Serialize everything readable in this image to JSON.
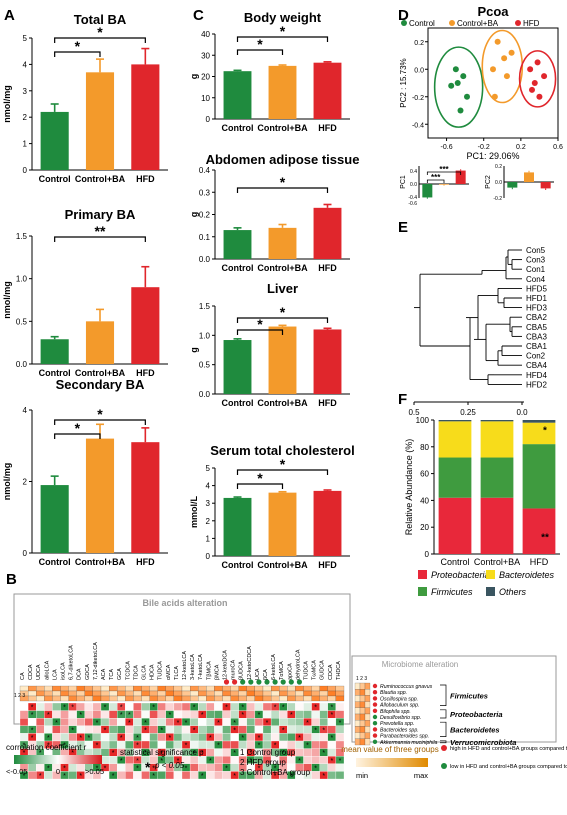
{
  "colors": {
    "control": "#1f8b3e",
    "control_ba": "#f39a2b",
    "hfd": "#e0262c",
    "prot": "#e8283a",
    "bact": "#f7dc1b",
    "firm": "#3f9b3f",
    "others": "#3a5560"
  },
  "letters": [
    "A",
    "B",
    "C",
    "D",
    "E",
    "F"
  ],
  "legend_d": {
    "control": "Control",
    "control_ba": "Control+BA",
    "hfd": "HFD"
  },
  "chart_data": [
    {
      "id": "total_ba",
      "panel": "A",
      "type": "bar",
      "title": "Total BA",
      "ylabel": "nmol/mg",
      "categories": [
        "Control",
        "Control+BA",
        "HFD"
      ],
      "values": [
        2.2,
        3.7,
        4.0
      ],
      "errors": [
        0.3,
        0.5,
        0.6
      ],
      "ylim": [
        0,
        5
      ],
      "yticks": [
        "0",
        "1",
        "2",
        "3",
        "4",
        "5"
      ],
      "sig": [
        {
          "label": "*",
          "a": 0,
          "b": 1
        },
        {
          "label": "*",
          "a": 0,
          "b": 2
        }
      ]
    },
    {
      "id": "primary_ba",
      "panel": "A",
      "type": "bar",
      "title": "Primary BA",
      "ylabel": "nmol/mg",
      "categories": [
        "Control",
        "Control+BA",
        "HFD"
      ],
      "values": [
        0.29,
        0.5,
        0.9
      ],
      "errors": [
        0.03,
        0.14,
        0.24
      ],
      "ylim": [
        0,
        1.5
      ],
      "yticks": [
        "0.0",
        "0.5",
        "1.0",
        "1.5"
      ],
      "sig": [
        {
          "label": "**",
          "a": 0,
          "b": 2
        }
      ]
    },
    {
      "id": "secondary_ba",
      "panel": "A",
      "type": "bar",
      "title": "Secondary BA",
      "ylabel": "nmol/mg",
      "categories": [
        "Control",
        "Control+BA",
        "HFD"
      ],
      "values": [
        1.9,
        3.2,
        3.1
      ],
      "errors": [
        0.25,
        0.4,
        0.4
      ],
      "ylim": [
        0,
        4
      ],
      "yticks": [
        "0",
        "2",
        "4"
      ],
      "sig": [
        {
          "label": "*",
          "a": 0,
          "b": 1
        },
        {
          "label": "*",
          "a": 0,
          "b": 2
        }
      ]
    },
    {
      "id": "body_weight",
      "panel": "C",
      "type": "bar",
      "title": "Body weight",
      "ylabel": "g",
      "categories": [
        "Control",
        "Control+BA",
        "HFD"
      ],
      "values": [
        22.5,
        25.0,
        26.5
      ],
      "errors": [
        0.4,
        0.4,
        0.4
      ],
      "ylim": [
        0,
        40
      ],
      "yticks": [
        "0",
        "10",
        "20",
        "30",
        "40"
      ],
      "sig": [
        {
          "label": "*",
          "a": 0,
          "b": 1
        },
        {
          "label": "*",
          "a": 0,
          "b": 2
        }
      ]
    },
    {
      "id": "abdomen",
      "panel": "C",
      "type": "bar",
      "title": "Abdomen adipose tissue",
      "ylabel": "g",
      "categories": [
        "Control",
        "Control+BA",
        "HFD"
      ],
      "values": [
        0.13,
        0.14,
        0.23
      ],
      "errors": [
        0.01,
        0.015,
        0.015
      ],
      "ylim": [
        0,
        0.4
      ],
      "yticks": [
        "0.0",
        "0.1",
        "0.2",
        "0.3",
        "0.4"
      ],
      "sig": [
        {
          "label": "*",
          "a": 0,
          "b": 2
        }
      ]
    },
    {
      "id": "liver",
      "panel": "C",
      "type": "bar",
      "title": "Liver",
      "ylabel": "g",
      "categories": [
        "Control",
        "Control+BA",
        "HFD"
      ],
      "values": [
        0.92,
        1.15,
        1.1
      ],
      "errors": [
        0.02,
        0.02,
        0.02
      ],
      "ylim": [
        0,
        1.5
      ],
      "yticks": [
        "0.0",
        "0.5",
        "1.0",
        "1.5"
      ],
      "sig": [
        {
          "label": "*",
          "a": 0,
          "b": 1
        },
        {
          "label": "*",
          "a": 0,
          "b": 2
        }
      ]
    },
    {
      "id": "cholesterol",
      "panel": "C",
      "type": "bar",
      "title": "Serum total cholesterol",
      "ylabel": "mmol/L",
      "categories": [
        "Control",
        "Control+BA",
        "HFD"
      ],
      "values": [
        3.3,
        3.6,
        3.7
      ],
      "errors": [
        0.05,
        0.05,
        0.05
      ],
      "ylim": [
        0,
        5
      ],
      "yticks": [
        "0",
        "1",
        "2",
        "3",
        "4",
        "5"
      ],
      "sig": [
        {
          "label": "*",
          "a": 0,
          "b": 1
        },
        {
          "label": "*",
          "a": 0,
          "b": 2
        }
      ]
    },
    {
      "id": "pcoa",
      "panel": "D",
      "type": "scatter",
      "title": "Pcoa",
      "xlabel": "PC1: 29.06%",
      "ylabel": "PC2 : 15.73%",
      "xlim": [
        -0.8,
        0.6
      ],
      "ylim": [
        -0.5,
        0.3
      ],
      "xticks": [
        -0.6,
        -0.2,
        0.2,
        0.6
      ],
      "yticks": [
        -0.4,
        -0.2,
        0.0,
        0.2
      ],
      "series": [
        {
          "name": "Control",
          "points": [
            [
              -0.5,
              0.0
            ],
            [
              -0.48,
              -0.1
            ],
            [
              -0.42,
              -0.05
            ],
            [
              -0.38,
              -0.2
            ],
            [
              -0.45,
              -0.3
            ],
            [
              -0.55,
              -0.12
            ]
          ]
        },
        {
          "name": "Control+BA",
          "points": [
            [
              -0.05,
              0.2
            ],
            [
              0.02,
              0.08
            ],
            [
              -0.1,
              0.0
            ],
            [
              0.05,
              -0.05
            ],
            [
              -0.08,
              -0.2
            ],
            [
              0.1,
              0.12
            ]
          ]
        },
        {
          "name": "HFD",
          "points": [
            [
              0.3,
              0.0
            ],
            [
              0.35,
              -0.1
            ],
            [
              0.4,
              -0.2
            ],
            [
              0.45,
              -0.05
            ],
            [
              0.38,
              0.05
            ],
            [
              0.32,
              -0.15
            ]
          ]
        }
      ]
    },
    {
      "id": "pc1_bar",
      "panel": "D",
      "type": "bar",
      "ylabel": "PC1",
      "ylim": [
        -0.6,
        0.4
      ],
      "yticks": [
        "0.4",
        "0.0",
        "-0.4",
        "-0.6"
      ],
      "values": [
        -0.42,
        -0.02,
        0.42
      ],
      "errors": [
        0.04,
        0.03,
        0.04
      ],
      "sig": [
        {
          "label": "***",
          "a": 0,
          "b": 2
        },
        {
          "label": "***",
          "a": 0,
          "b": 1
        }
      ]
    },
    {
      "id": "pc2_bar",
      "panel": "D",
      "type": "bar",
      "ylabel": "PC2",
      "ylim": [
        -0.2,
        0.2
      ],
      "yticks": [
        "0.2",
        "0.0",
        "-0.2"
      ],
      "values": [
        -0.07,
        0.12,
        -0.08
      ],
      "errors": [
        0.02,
        0.02,
        0.02
      ]
    },
    {
      "id": "dendrogram",
      "panel": "E",
      "type": "dendrogram",
      "leaves": [
        "Con5",
        "Con3",
        "Con1",
        "Con4",
        "HFD5",
        "HFD1",
        "HFD3",
        "CBA2",
        "CBA5",
        "CBA3",
        "CBA1",
        "Con2",
        "CBA4",
        "HFD4",
        "HFD2"
      ],
      "xticks": [
        "0.5",
        "0.25",
        "0.0"
      ]
    },
    {
      "id": "abundance",
      "panel": "F",
      "type": "stacked_bar",
      "ylabel": "Relative Abundance (%)",
      "ylim": [
        0,
        100
      ],
      "yticks": [
        "0",
        "20",
        "40",
        "60",
        "80",
        "100"
      ],
      "categories": [
        "Control",
        "Control+BA",
        "HFD"
      ],
      "series": [
        {
          "name": "Proteobacteria",
          "values": [
            42,
            42,
            34
          ]
        },
        {
          "name": "Firmicutes",
          "values": [
            30,
            30,
            48
          ]
        },
        {
          "name": "Bacteroidetes",
          "values": [
            27,
            27,
            16
          ]
        },
        {
          "name": "Others",
          "values": [
            1,
            1,
            2
          ]
        }
      ],
      "annotations": [
        {
          "label": "*",
          "bar": 2,
          "series": "Bacteroidetes"
        },
        {
          "label": "**",
          "bar": 2,
          "series": "Proteobacteria"
        }
      ]
    },
    {
      "id": "heatmap",
      "panel": "B",
      "type": "heatmap",
      "title": "Bile acids alteration",
      "side_title": "Microbiome alteration",
      "columns": [
        "CA",
        "CDCA",
        "UDCA",
        "alloLCA",
        "LCA",
        "isoLCA",
        "6,7-diketoLCA",
        "DCA",
        "GDCA",
        "7,12-diketoLCA",
        "ACA",
        "TCA",
        "GCA",
        "TCDCA",
        "TDCA",
        "GLCA",
        "HDCA",
        "TUDCA",
        "αMCA",
        "TLCA",
        "12-ketoLCA",
        "3-ketoLCA",
        "7-ketoLCA",
        "TβMCA",
        "βMCA",
        "12-ketoDCA",
        "muroCA",
        "βUDCA",
        "12-ketoCDCA",
        "UCA",
        "βCA",
        "6-ketoLCA",
        "TαMCA",
        "apoCA",
        "dehydroLCA",
        "TUDCA",
        "TωMCA",
        "GUDCA",
        "CDCA",
        "THDCA"
      ],
      "rows": [
        "Ruminococcus gnavus",
        "Blautia spp.",
        "Oscillospira spp.",
        "Allobaculum spp.",
        "Bilophila spp.",
        "Desulfovibrio spp.",
        "Prevotella spp.",
        "Bacteroides spp.",
        "Parabacteroides spp.",
        "Akkermansia muciniphila"
      ],
      "row_groups": [
        {
          "name": "Firmicutes",
          "from": 0,
          "to": 3
        },
        {
          "name": "Proteobacteria",
          "from": 4,
          "to": 5
        },
        {
          "name": "Bacteroidetes",
          "from": 6,
          "to": 8
        },
        {
          "name": "Verrucomicrobiota",
          "from": 9,
          "to": 9
        }
      ],
      "row_dots": [
        "red",
        "red",
        "red",
        "red",
        "red",
        "green",
        "green",
        "red",
        "red",
        "green"
      ],
      "col_dots": {
        "25": "red",
        "26": "red",
        "27": "green",
        "28": "green",
        "29": "green",
        "30": "green",
        "31": "green",
        "32": "green",
        "33": "green",
        "34": "green"
      }
    }
  ],
  "legends_b": {
    "corr_title": "corrolation coefficient r",
    "corr_low": "<-0.05",
    "corr_mid": "0",
    "corr_high": ">0.05",
    "sig_title": "statistical significance p",
    "sig_star": "*",
    "sig_text": "p < 0.05",
    "groups": [
      "1 Control group",
      "2 HFD group",
      "3 Control+BA group"
    ],
    "mean_title": "mean value of three groups",
    "mean_min": "min",
    "mean_max": "max",
    "dot_red": "high in HFD and control+BA groups compared to control group",
    "dot_green": "low in HFD and control+BA groups compared to control group",
    "col_index": "1 2 3"
  }
}
